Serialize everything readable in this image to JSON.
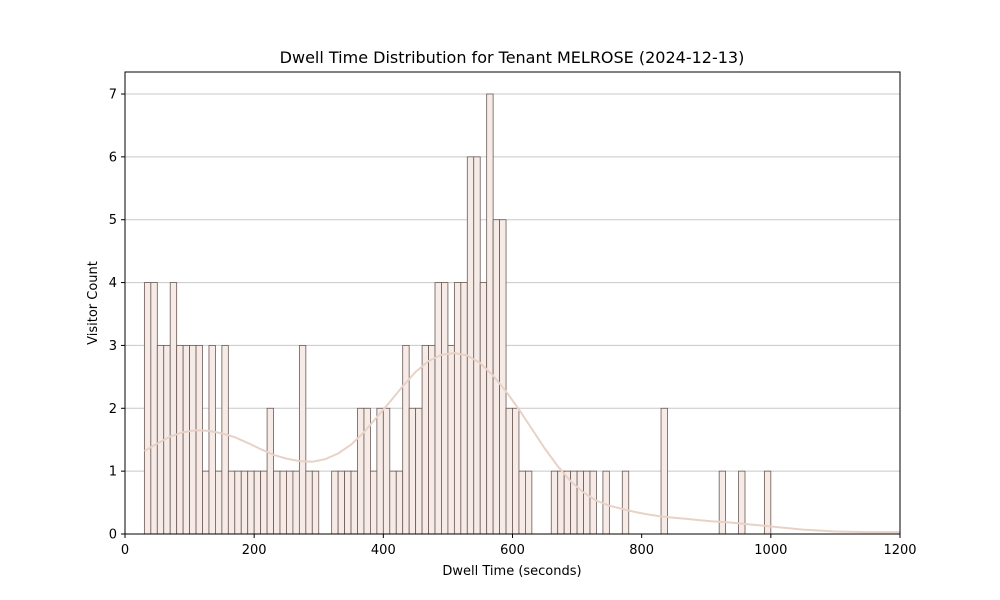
{
  "chart_data": {
    "type": "bar",
    "title": "Dwell Time Distribution for Tenant MELROSE (2024-12-13)",
    "xlabel": "Dwell Time (seconds)",
    "ylabel": "Visitor Count",
    "xlim": [
      0,
      1200
    ],
    "ylim": [
      0,
      7.35
    ],
    "xticks": [
      "0",
      "200",
      "400",
      "600",
      "800",
      "1000",
      "1200"
    ],
    "yticks": [
      "0",
      "1",
      "2",
      "3",
      "4",
      "5",
      "6",
      "7"
    ],
    "grid": "y",
    "bar_color": "#f6ebe7",
    "bar_edge_color": "#6b5a55",
    "kde_color": "#e8d2c7",
    "bin_width": 10,
    "bins": [
      {
        "x": 30,
        "count": 4
      },
      {
        "x": 40,
        "count": 4
      },
      {
        "x": 50,
        "count": 3
      },
      {
        "x": 60,
        "count": 3
      },
      {
        "x": 70,
        "count": 4
      },
      {
        "x": 80,
        "count": 3
      },
      {
        "x": 90,
        "count": 3
      },
      {
        "x": 100,
        "count": 3
      },
      {
        "x": 110,
        "count": 3
      },
      {
        "x": 120,
        "count": 1
      },
      {
        "x": 130,
        "count": 3
      },
      {
        "x": 140,
        "count": 1
      },
      {
        "x": 150,
        "count": 3
      },
      {
        "x": 160,
        "count": 1
      },
      {
        "x": 170,
        "count": 1
      },
      {
        "x": 180,
        "count": 1
      },
      {
        "x": 190,
        "count": 1
      },
      {
        "x": 200,
        "count": 1
      },
      {
        "x": 210,
        "count": 1
      },
      {
        "x": 220,
        "count": 2
      },
      {
        "x": 230,
        "count": 1
      },
      {
        "x": 240,
        "count": 1
      },
      {
        "x": 250,
        "count": 1
      },
      {
        "x": 260,
        "count": 1
      },
      {
        "x": 270,
        "count": 3
      },
      {
        "x": 280,
        "count": 1
      },
      {
        "x": 290,
        "count": 1
      },
      {
        "x": 300,
        "count": 0
      },
      {
        "x": 310,
        "count": 0
      },
      {
        "x": 320,
        "count": 1
      },
      {
        "x": 330,
        "count": 1
      },
      {
        "x": 340,
        "count": 1
      },
      {
        "x": 350,
        "count": 1
      },
      {
        "x": 360,
        "count": 2
      },
      {
        "x": 370,
        "count": 2
      },
      {
        "x": 380,
        "count": 1
      },
      {
        "x": 390,
        "count": 2
      },
      {
        "x": 400,
        "count": 2
      },
      {
        "x": 410,
        "count": 1
      },
      {
        "x": 420,
        "count": 1
      },
      {
        "x": 430,
        "count": 3
      },
      {
        "x": 440,
        "count": 2
      },
      {
        "x": 450,
        "count": 2
      },
      {
        "x": 460,
        "count": 3
      },
      {
        "x": 470,
        "count": 3
      },
      {
        "x": 480,
        "count": 4
      },
      {
        "x": 490,
        "count": 4
      },
      {
        "x": 500,
        "count": 3
      },
      {
        "x": 510,
        "count": 4
      },
      {
        "x": 520,
        "count": 4
      },
      {
        "x": 530,
        "count": 6
      },
      {
        "x": 540,
        "count": 6
      },
      {
        "x": 550,
        "count": 4
      },
      {
        "x": 560,
        "count": 7
      },
      {
        "x": 570,
        "count": 5
      },
      {
        "x": 580,
        "count": 5
      },
      {
        "x": 590,
        "count": 2
      },
      {
        "x": 600,
        "count": 2
      },
      {
        "x": 610,
        "count": 1
      },
      {
        "x": 620,
        "count": 1
      },
      {
        "x": 660,
        "count": 1
      },
      {
        "x": 670,
        "count": 1
      },
      {
        "x": 680,
        "count": 1
      },
      {
        "x": 690,
        "count": 1
      },
      {
        "x": 700,
        "count": 1
      },
      {
        "x": 710,
        "count": 1
      },
      {
        "x": 720,
        "count": 1
      },
      {
        "x": 740,
        "count": 1
      },
      {
        "x": 770,
        "count": 1
      },
      {
        "x": 830,
        "count": 2
      },
      {
        "x": 920,
        "count": 1
      },
      {
        "x": 950,
        "count": 1
      },
      {
        "x": 990,
        "count": 1
      }
    ],
    "kde": {
      "x": [
        30,
        50,
        70,
        90,
        110,
        130,
        150,
        170,
        190,
        210,
        230,
        250,
        270,
        290,
        310,
        330,
        350,
        370,
        390,
        410,
        430,
        450,
        470,
        490,
        510,
        530,
        550,
        570,
        590,
        610,
        630,
        650,
        670,
        690,
        710,
        730,
        750,
        770,
        790,
        810,
        830,
        850,
        870,
        890,
        910,
        930,
        950,
        970,
        990,
        1010,
        1050,
        1100,
        1150,
        1200
      ],
      "y": [
        1.32,
        1.44,
        1.55,
        1.62,
        1.65,
        1.64,
        1.6,
        1.54,
        1.45,
        1.35,
        1.26,
        1.2,
        1.16,
        1.15,
        1.19,
        1.28,
        1.42,
        1.62,
        1.86,
        2.1,
        2.35,
        2.58,
        2.75,
        2.85,
        2.88,
        2.84,
        2.72,
        2.52,
        2.27,
        1.98,
        1.67,
        1.36,
        1.08,
        0.84,
        0.66,
        0.53,
        0.45,
        0.4,
        0.35,
        0.31,
        0.28,
        0.26,
        0.24,
        0.22,
        0.2,
        0.19,
        0.17,
        0.15,
        0.13,
        0.11,
        0.07,
        0.04,
        0.03,
        0.03
      ]
    }
  }
}
